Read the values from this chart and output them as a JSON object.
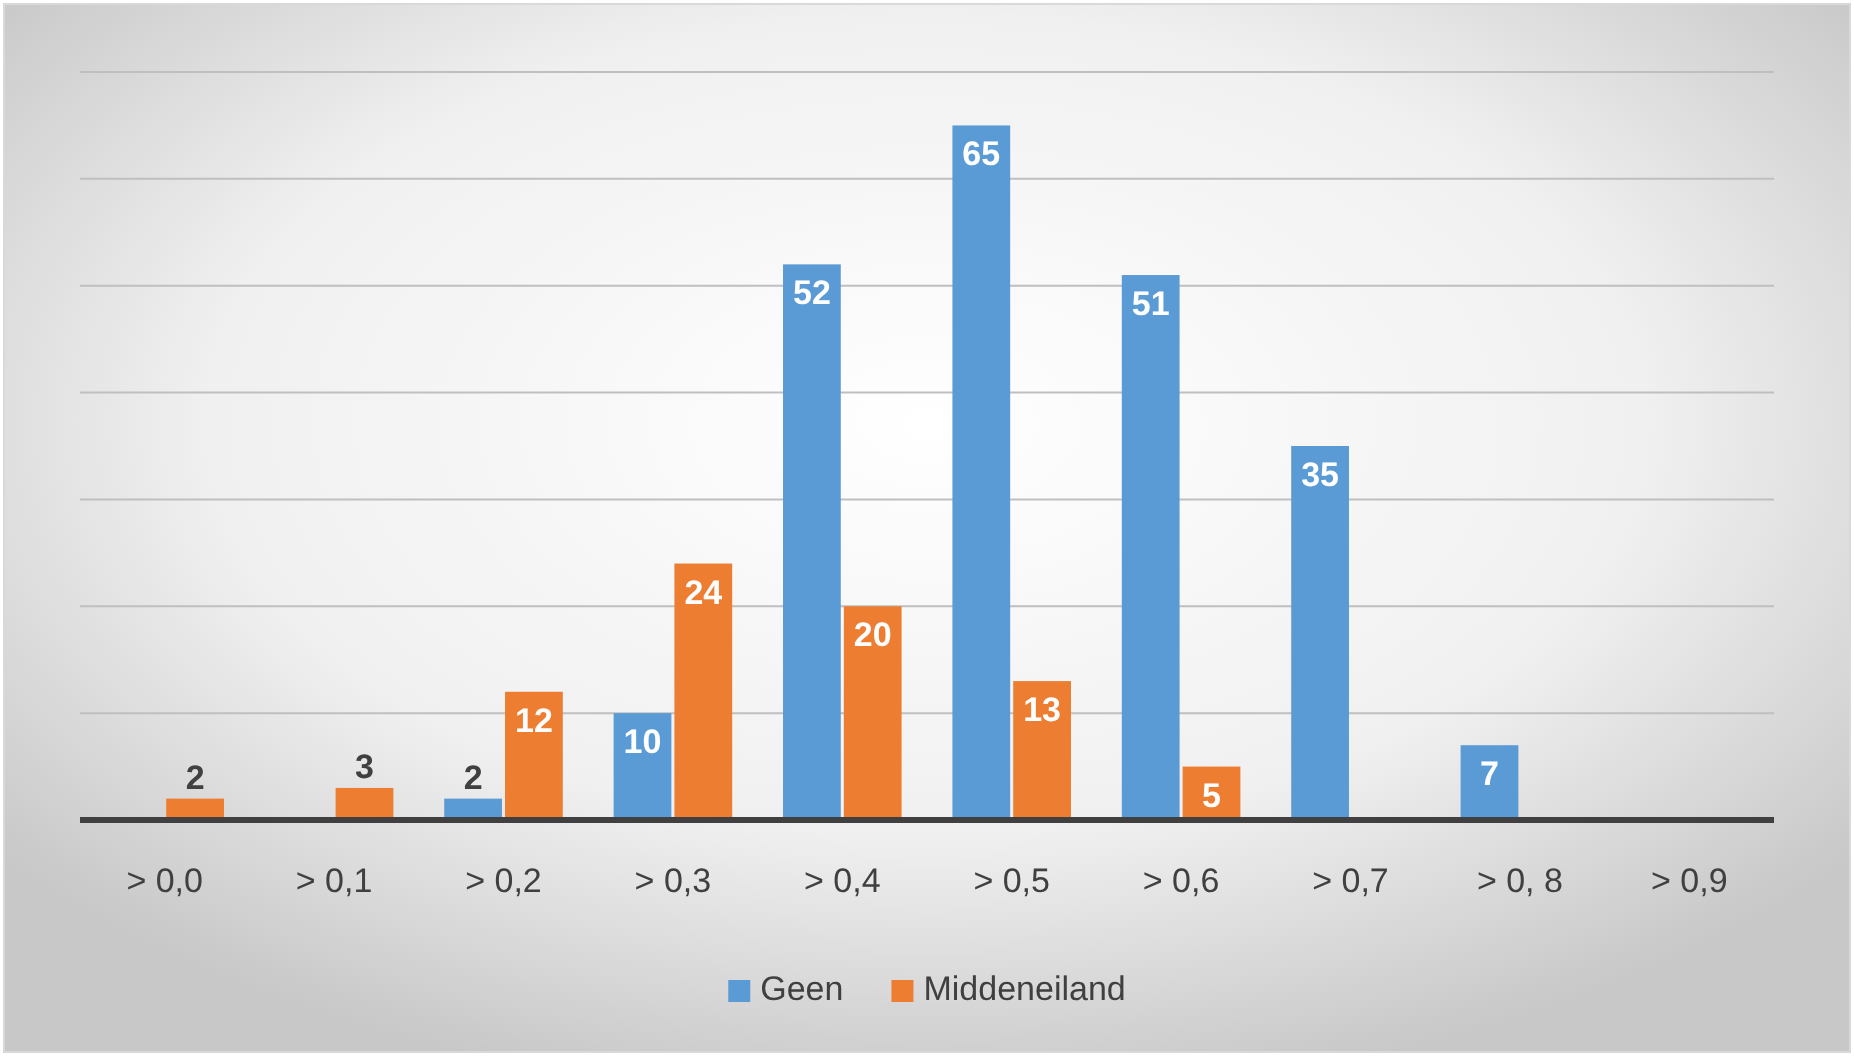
{
  "chart_data": {
    "type": "bar",
    "categories": [
      "> 0,0",
      "> 0,1",
      "> 0,2",
      "> 0,3",
      "> 0,4",
      "> 0,5",
      "> 0,6",
      "> 0,7",
      "> 0, 8",
      "> 0,9"
    ],
    "series": [
      {
        "name": "Geen",
        "color": "#5b9bd5",
        "values": [
          0,
          0,
          2,
          10,
          52,
          65,
          51,
          35,
          7,
          0
        ],
        "value_labels": [
          null,
          null,
          "2",
          "10",
          "52",
          "65",
          "51",
          "35",
          "7",
          null
        ]
      },
      {
        "name": "Middeneiland",
        "color": "#ed7d31",
        "values": [
          2,
          3,
          12,
          24,
          20,
          13,
          5,
          0,
          0,
          0
        ],
        "value_labels": [
          "2",
          "3",
          "12",
          "24",
          "20",
          "13",
          "5",
          null,
          null,
          null
        ]
      }
    ],
    "ylim": [
      0,
      70
    ],
    "yticks": [
      {
        "value": 0,
        "label": null
      },
      {
        "value": 10,
        "label": null
      },
      {
        "value": 20,
        "label": null
      },
      {
        "value": 30,
        "label": null
      },
      {
        "value": 40,
        "label": null
      },
      {
        "value": 50,
        "label": null
      },
      {
        "value": 60,
        "label": null
      },
      {
        "value": 70,
        "label": null
      }
    ],
    "grid": "y",
    "tick_labels": "x",
    "legend": "bottom"
  }
}
